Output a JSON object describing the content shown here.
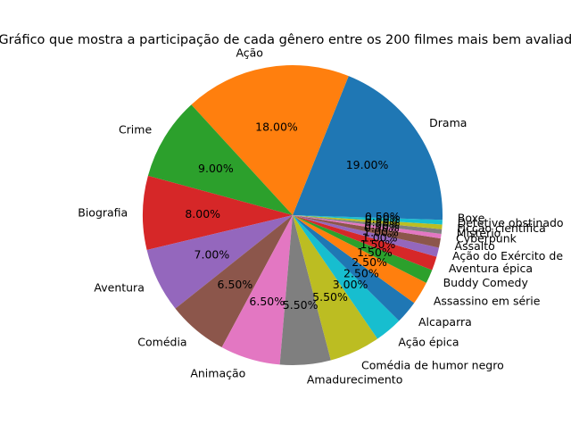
{
  "chart_data": {
    "type": "pie",
    "title": "Gráfico que mostra a participação de cada gênero entre os 200 filmes mais bem avaliados",
    "categories": [
      "Drama",
      "Ação",
      "Crime",
      "Biografia",
      "Aventura",
      "Comédia",
      "Animação",
      "Amadurecimento",
      "Comédia de humor negro",
      "Ação épica",
      "Alcaparra",
      "Assassino em série",
      "Buddy Comedy",
      "Aventura épica",
      "Ação do Exército de",
      "Assalto",
      "Cyberpunk",
      "Mistério",
      "Ficção científica",
      "Detetive obstinado",
      "Boxe"
    ],
    "values": [
      19.0,
      18.0,
      9.0,
      8.0,
      7.0,
      6.5,
      6.5,
      5.5,
      5.5,
      3.0,
      2.5,
      2.5,
      1.5,
      1.5,
      1.0,
      1.0,
      0.5,
      0.5,
      0.5,
      0.5,
      0.5
    ],
    "labels": [
      "19.00%",
      "18.00%",
      "9.00%",
      "8.00%",
      "7.00%",
      "6.50%",
      "6.50%",
      "5.50%",
      "5.50%",
      "3.00%",
      "2.50%",
      "2.50%",
      "1.50%",
      "1.50%",
      "1.00%",
      "1.00%",
      "0.50%",
      "0.50%",
      "0.50%",
      "0.50%",
      "0.50%"
    ],
    "colors": [
      "#1f77b4",
      "#ff7f0e",
      "#2ca02c",
      "#d62728",
      "#9467bd",
      "#8c564b",
      "#e377c2",
      "#7f7f7f",
      "#bcbd22",
      "#17becf",
      "#1f77b4",
      "#ff7f0e",
      "#2ca02c",
      "#d62728",
      "#9467bd",
      "#8c564b",
      "#e377c2",
      "#7f7f7f",
      "#bcbd22",
      "#17becf",
      "#1f77b4"
    ],
    "start_angle_deg": 0,
    "direction": "counterclockwise"
  }
}
